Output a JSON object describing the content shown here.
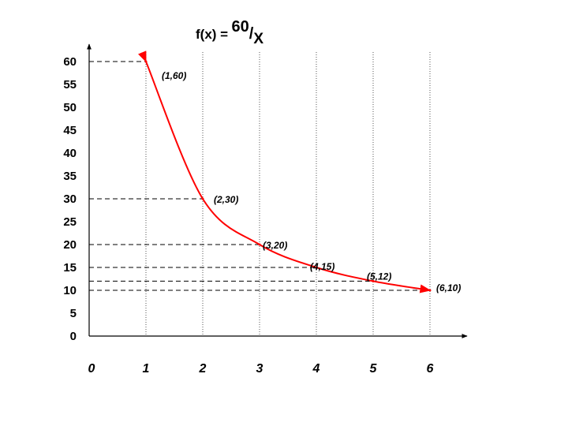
{
  "chart_data": {
    "type": "line",
    "title_parts": {
      "lhs": "f(x) =",
      "numerator": "60",
      "slash": "/",
      "denominator": "X"
    },
    "x_tick_labels": [
      "0",
      "1",
      "2",
      "3",
      "4",
      "5",
      "6"
    ],
    "y_tick_labels": [
      "0",
      "5",
      "10",
      "15",
      "20",
      "25",
      "30",
      "35",
      "40",
      "45",
      "50",
      "55",
      "60"
    ],
    "xlim": [
      0,
      6
    ],
    "ylim": [
      0,
      60
    ],
    "grid": "dotted vertical lines at x = 1..6; dashed horizontal guides at point y-values",
    "series": [
      {
        "color": "#ff0000",
        "points": [
          {
            "x": 1,
            "y": 60,
            "label": "(1,60)"
          },
          {
            "x": 2,
            "y": 30,
            "label": "(2,30)"
          },
          {
            "x": 3,
            "y": 20,
            "label": "(3,20)"
          },
          {
            "x": 4,
            "y": 15,
            "label": "(4,15)"
          },
          {
            "x": 5,
            "y": 12,
            "label": "(5,12)"
          },
          {
            "x": 6,
            "y": 10,
            "label": "(6,10)"
          }
        ]
      }
    ]
  }
}
